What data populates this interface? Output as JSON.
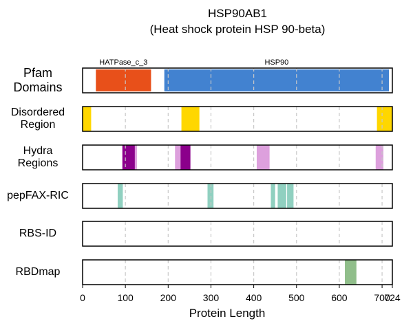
{
  "chart_data": {
    "type": "bar",
    "title": "HSP90AB1",
    "subtitle": "(Heat shock protein HSP 90-beta)",
    "xlabel": "Protein Length",
    "xlim": [
      0,
      724
    ],
    "xticks": [
      0,
      100,
      200,
      300,
      400,
      500,
      600,
      700,
      724
    ],
    "xtick_labels": [
      "0",
      "100",
      "200",
      "300",
      "400",
      "500",
      "600",
      "700",
      "724"
    ],
    "grid": "vertical dashed",
    "tracks": [
      {
        "label_lines": [
          "Pfam",
          "Domains"
        ],
        "segments": [
          {
            "start": 31,
            "end": 160,
            "color": "#E8501A",
            "label": "HATPase_c_3"
          },
          {
            "start": 191,
            "end": 716,
            "color": "#4282D0",
            "label": "HSP90"
          }
        ]
      },
      {
        "label_lines": [
          "Disordered",
          "Region"
        ],
        "segments": [
          {
            "start": 0,
            "end": 20,
            "color": "#FFD700"
          },
          {
            "start": 231,
            "end": 273,
            "color": "#FFD700"
          },
          {
            "start": 688,
            "end": 724,
            "color": "#FFD700"
          }
        ]
      },
      {
        "label_lines": [
          "Hydra",
          "Regions"
        ],
        "segments": [
          {
            "start": 93,
            "end": 127,
            "color": "#DDA0DD"
          },
          {
            "start": 93,
            "end": 122,
            "color": "#8B008B"
          },
          {
            "start": 216,
            "end": 230,
            "color": "#DDA0DD"
          },
          {
            "start": 229,
            "end": 252,
            "color": "#8B008B"
          },
          {
            "start": 407,
            "end": 437,
            "color": "#DDA0DD"
          },
          {
            "start": 685,
            "end": 703,
            "color": "#DDA0DD"
          }
        ]
      },
      {
        "label_lines": [
          "pepFAX-RIC"
        ],
        "segments": [
          {
            "start": 82,
            "end": 94,
            "color": "#90D0C0"
          },
          {
            "start": 292,
            "end": 306,
            "color": "#90D0C0"
          },
          {
            "start": 440,
            "end": 450,
            "color": "#90D0C0"
          },
          {
            "start": 456,
            "end": 476,
            "color": "#90D0C0"
          },
          {
            "start": 478,
            "end": 493,
            "color": "#90D0C0"
          }
        ]
      },
      {
        "label_lines": [
          "RBS-ID"
        ],
        "segments": []
      },
      {
        "label_lines": [
          "RBDmap"
        ],
        "segments": [
          {
            "start": 613,
            "end": 640,
            "color": "#90BE8A"
          }
        ]
      }
    ]
  }
}
